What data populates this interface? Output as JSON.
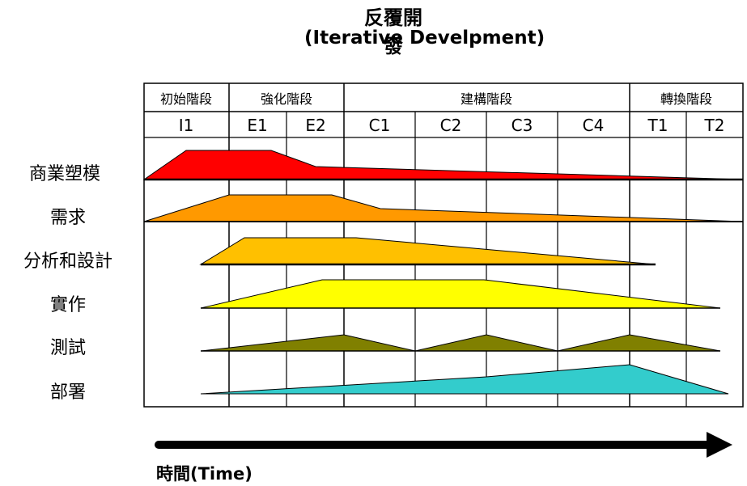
{
  "title_zh": "反覆開發",
  "title_en": "(Iterative Develpment)",
  "phases": [
    {
      "name": "初始階段",
      "iterations": [
        "I1"
      ]
    },
    {
      "name": "強化階段",
      "iterations": [
        "E1",
        "E2"
      ]
    },
    {
      "name": "建構階段",
      "iterations": [
        "C1",
        "C2",
        "C3",
        "C4"
      ]
    },
    {
      "name": "轉換階段",
      "iterations": [
        "T1",
        "T2"
      ]
    }
  ],
  "disciplines": [
    {
      "name": "商業塑模",
      "color": "#FF0000"
    },
    {
      "name": "需求",
      "color": "#FF9900"
    },
    {
      "name": "分析和設計",
      "color": "#FFC000"
    },
    {
      "name": "實作",
      "color": "#FFFF00"
    },
    {
      "name": "測試",
      "color": "#808000"
    },
    {
      "name": "部署",
      "color": "#33CCCC"
    }
  ],
  "time_label": "時間(Time)"
}
